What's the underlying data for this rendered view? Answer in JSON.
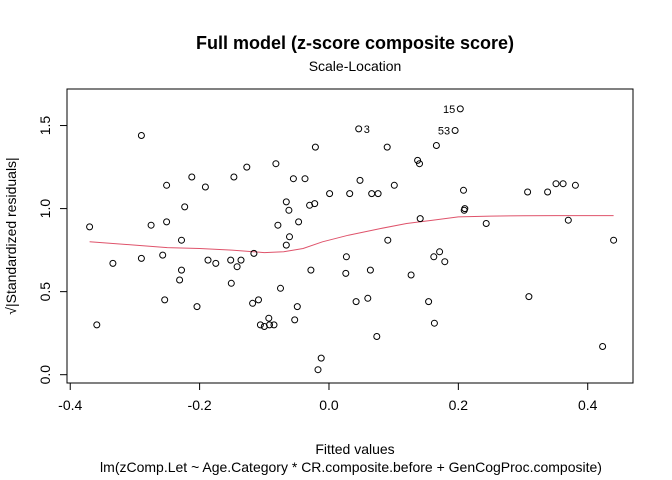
{
  "chart_data": {
    "type": "scatter",
    "title": "Full model (z-score composite score)",
    "subtitle": "Scale-Location",
    "xlabel": "Fitted values",
    "xlabel2": "lm(zComp.Let ~ Age.Category * CR.composite.before + GenCogProc.composite)",
    "ylabel": "√|Standardized residuals|",
    "xlim": [
      -0.405,
      0.47
    ],
    "ylim": [
      -0.05,
      1.72
    ],
    "xticks": [
      -0.4,
      -0.2,
      0.0,
      0.2,
      0.4
    ],
    "xtick_labels": [
      "-0.4",
      "-0.2",
      "0.0",
      "0.2",
      "0.4"
    ],
    "yticks": [
      0.0,
      0.5,
      1.0,
      1.5
    ],
    "ytick_labels": [
      "0.0",
      "0.5",
      "1.0",
      "1.5"
    ],
    "grid": false,
    "smooth_color": "#DF536B",
    "points": [
      {
        "x": -0.37,
        "y": 0.89
      },
      {
        "x": -0.359,
        "y": 0.3
      },
      {
        "x": -0.334,
        "y": 0.67
      },
      {
        "x": -0.29,
        "y": 1.44
      },
      {
        "x": -0.29,
        "y": 0.7
      },
      {
        "x": -0.275,
        "y": 0.9
      },
      {
        "x": -0.257,
        "y": 0.72
      },
      {
        "x": -0.254,
        "y": 0.45
      },
      {
        "x": -0.251,
        "y": 1.14
      },
      {
        "x": -0.251,
        "y": 0.92
      },
      {
        "x": -0.231,
        "y": 0.57
      },
      {
        "x": -0.228,
        "y": 0.63
      },
      {
        "x": -0.228,
        "y": 0.81
      },
      {
        "x": -0.223,
        "y": 1.01
      },
      {
        "x": -0.212,
        "y": 1.19
      },
      {
        "x": -0.204,
        "y": 0.41
      },
      {
        "x": -0.191,
        "y": 1.13
      },
      {
        "x": -0.187,
        "y": 0.69
      },
      {
        "x": -0.175,
        "y": 0.67
      },
      {
        "x": -0.152,
        "y": 0.69
      },
      {
        "x": -0.151,
        "y": 0.55
      },
      {
        "x": -0.147,
        "y": 1.19
      },
      {
        "x": -0.142,
        "y": 0.65
      },
      {
        "x": -0.136,
        "y": 0.69
      },
      {
        "x": -0.127,
        "y": 1.25
      },
      {
        "x": -0.118,
        "y": 0.43
      },
      {
        "x": -0.116,
        "y": 0.73
      },
      {
        "x": -0.109,
        "y": 0.45
      },
      {
        "x": -0.106,
        "y": 0.3
      },
      {
        "x": -0.1,
        "y": 0.29
      },
      {
        "x": -0.093,
        "y": 0.34
      },
      {
        "x": -0.092,
        "y": 0.3
      },
      {
        "x": -0.085,
        "y": 0.3
      },
      {
        "x": -0.082,
        "y": 1.27
      },
      {
        "x": -0.079,
        "y": 0.9
      },
      {
        "x": -0.075,
        "y": 0.52
      },
      {
        "x": -0.066,
        "y": 0.78
      },
      {
        "x": -0.066,
        "y": 1.04
      },
      {
        "x": -0.062,
        "y": 0.99
      },
      {
        "x": -0.061,
        "y": 0.83
      },
      {
        "x": -0.055,
        "y": 1.18
      },
      {
        "x": -0.053,
        "y": 0.33
      },
      {
        "x": -0.049,
        "y": 0.41
      },
      {
        "x": -0.047,
        "y": 0.92
      },
      {
        "x": -0.037,
        "y": 1.18
      },
      {
        "x": -0.03,
        "y": 1.02
      },
      {
        "x": -0.028,
        "y": 0.63
      },
      {
        "x": -0.022,
        "y": 1.03
      },
      {
        "x": -0.021,
        "y": 1.37
      },
      {
        "x": -0.017,
        "y": 0.03
      },
      {
        "x": -0.012,
        "y": 0.1
      },
      {
        "x": 0.001,
        "y": 1.09
      },
      {
        "x": 0.026,
        "y": 0.61
      },
      {
        "x": 0.027,
        "y": 0.71
      },
      {
        "x": 0.032,
        "y": 1.09
      },
      {
        "x": 0.042,
        "y": 0.44
      },
      {
        "x": 0.046,
        "y": 1.48
      },
      {
        "x": 0.048,
        "y": 1.17
      },
      {
        "x": 0.06,
        "y": 0.46
      },
      {
        "x": 0.064,
        "y": 0.63
      },
      {
        "x": 0.066,
        "y": 1.09
      },
      {
        "x": 0.074,
        "y": 0.23
      },
      {
        "x": 0.076,
        "y": 1.09
      },
      {
        "x": 0.09,
        "y": 1.37
      },
      {
        "x": 0.091,
        "y": 0.81
      },
      {
        "x": 0.101,
        "y": 1.14
      },
      {
        "x": 0.127,
        "y": 0.6
      },
      {
        "x": 0.137,
        "y": 1.29
      },
      {
        "x": 0.14,
        "y": 1.27
      },
      {
        "x": 0.141,
        "y": 0.94
      },
      {
        "x": 0.154,
        "y": 0.44
      },
      {
        "x": 0.162,
        "y": 0.71
      },
      {
        "x": 0.163,
        "y": 0.31
      },
      {
        "x": 0.166,
        "y": 1.38
      },
      {
        "x": 0.171,
        "y": 0.74
      },
      {
        "x": 0.179,
        "y": 0.68
      },
      {
        "x": 0.195,
        "y": 1.47
      },
      {
        "x": 0.203,
        "y": 1.6
      },
      {
        "x": 0.208,
        "y": 1.11
      },
      {
        "x": 0.209,
        "y": 0.99
      },
      {
        "x": 0.21,
        "y": 1.0
      },
      {
        "x": 0.243,
        "y": 0.91
      },
      {
        "x": 0.307,
        "y": 1.1
      },
      {
        "x": 0.309,
        "y": 0.47
      },
      {
        "x": 0.338,
        "y": 1.1
      },
      {
        "x": 0.351,
        "y": 1.15
      },
      {
        "x": 0.362,
        "y": 1.15
      },
      {
        "x": 0.37,
        "y": 0.93
      },
      {
        "x": 0.381,
        "y": 1.14
      },
      {
        "x": 0.423,
        "y": 0.17
      },
      {
        "x": 0.44,
        "y": 0.81
      }
    ],
    "annotations": [
      {
        "label": "15",
        "x": 0.203,
        "y": 1.6
      },
      {
        "label": "53",
        "x": 0.195,
        "y": 1.47
      },
      {
        "label": "3",
        "x": 0.046,
        "y": 1.48
      }
    ],
    "smooth_line": [
      {
        "x": -0.37,
        "y": 0.8
      },
      {
        "x": -0.3,
        "y": 0.78
      },
      {
        "x": -0.25,
        "y": 0.765
      },
      {
        "x": -0.2,
        "y": 0.76
      },
      {
        "x": -0.15,
        "y": 0.75
      },
      {
        "x": -0.1,
        "y": 0.735
      },
      {
        "x": -0.07,
        "y": 0.74
      },
      {
        "x": -0.04,
        "y": 0.76
      },
      {
        "x": -0.01,
        "y": 0.8
      },
      {
        "x": 0.03,
        "y": 0.84
      },
      {
        "x": 0.08,
        "y": 0.88
      },
      {
        "x": 0.12,
        "y": 0.91
      },
      {
        "x": 0.16,
        "y": 0.93
      },
      {
        "x": 0.2,
        "y": 0.95
      },
      {
        "x": 0.25,
        "y": 0.955
      },
      {
        "x": 0.3,
        "y": 0.957
      },
      {
        "x": 0.35,
        "y": 0.958
      },
      {
        "x": 0.4,
        "y": 0.958
      },
      {
        "x": 0.44,
        "y": 0.958
      }
    ]
  }
}
